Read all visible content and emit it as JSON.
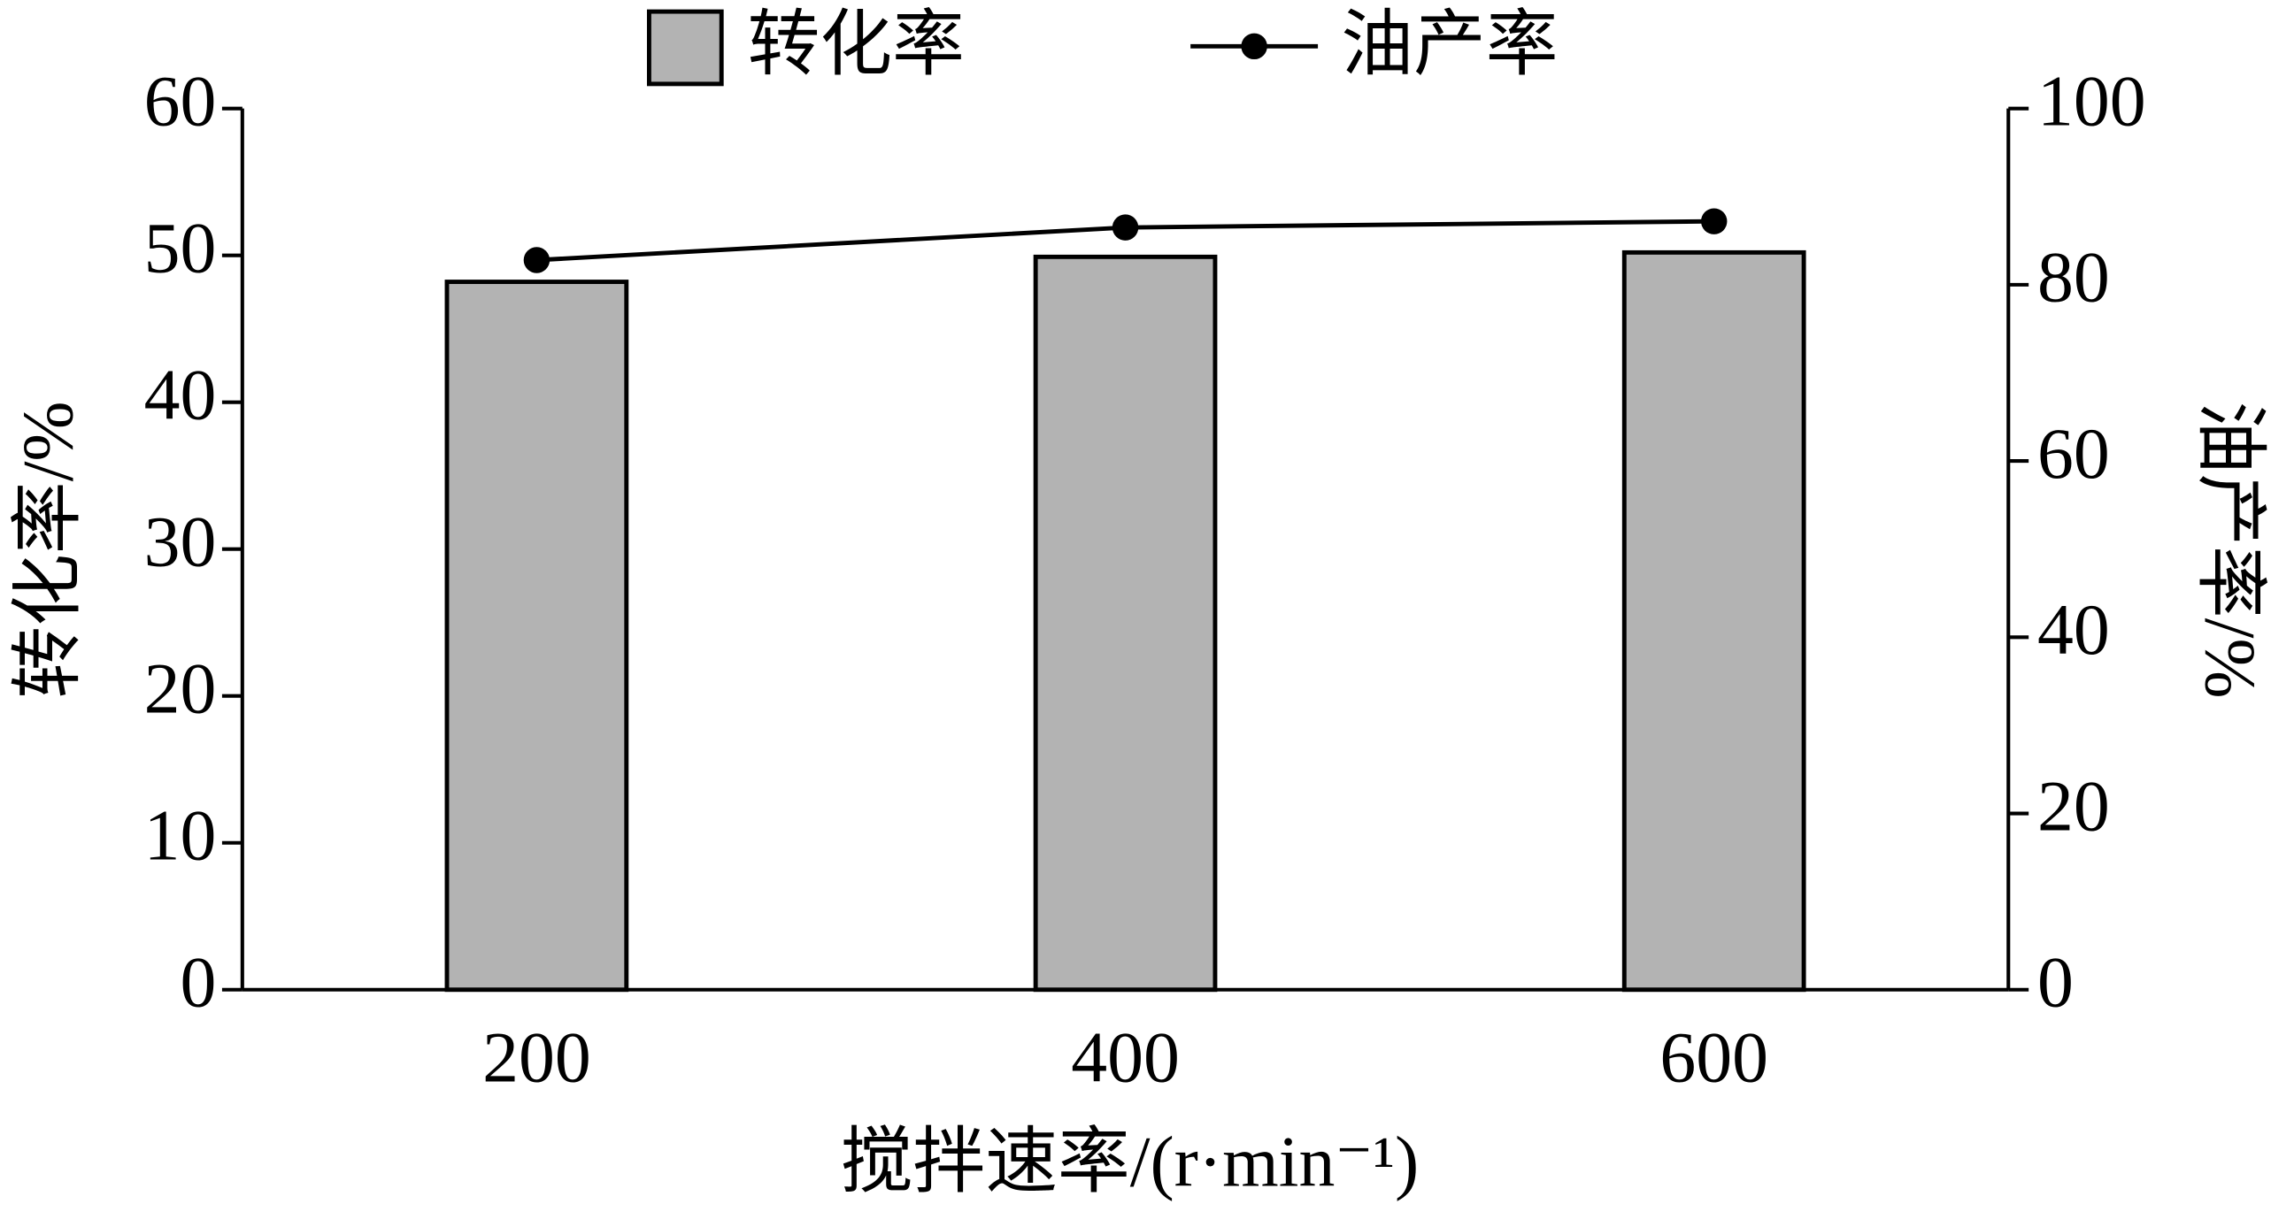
{
  "chart_data": {
    "type": "bar",
    "x_label": "搅拌速率/(r·min⁻¹)",
    "y_label": "转化率/%",
    "y2_label": "油产率/%",
    "categories": [
      "200",
      "400",
      "600"
    ],
    "series": [
      {
        "name": "转化率",
        "type": "bar",
        "color": "#b3b3b3",
        "values": [
          48.2,
          49.9,
          50.2
        ]
      },
      {
        "name": "油产率",
        "type": "line",
        "axis": "y2",
        "color": "#000000",
        "values": [
          82.8,
          86.5,
          87.2
        ]
      }
    ],
    "ylim": [
      0,
      60
    ],
    "yticks": [
      0,
      10,
      20,
      30,
      40,
      50,
      60
    ],
    "y2lim": [
      0,
      100
    ],
    "y2ticks": [
      0,
      20,
      40,
      60,
      80,
      100
    ],
    "legend": "top",
    "grid": false
  }
}
